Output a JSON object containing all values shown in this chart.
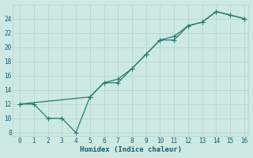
{
  "xlabel": "Humidex (Indice chaleur)",
  "line1_x": [
    0,
    1,
    2,
    3,
    4,
    5,
    6,
    7,
    8,
    9,
    10,
    11,
    12,
    13,
    14,
    15,
    16
  ],
  "line1_y": [
    12,
    12,
    10,
    10,
    8,
    13,
    15,
    15,
    17,
    19,
    21,
    21,
    23,
    23.5,
    25,
    24.5,
    24
  ],
  "line2_x": [
    0,
    5,
    6,
    7,
    8,
    9,
    10,
    11,
    12,
    13,
    14,
    15,
    16
  ],
  "line2_y": [
    12,
    13,
    15,
    15.5,
    17,
    19,
    21,
    21.5,
    23,
    23.5,
    25,
    24.5,
    24
  ],
  "line_color": "#2a7a6e",
  "bg_color": "#cde9e4",
  "grid_major_color": "#b8d4cf",
  "grid_minor_color": "#d8eceb",
  "text_color": "#1a5a6a",
  "xlim": [
    0,
    16
  ],
  "ylim": [
    7.5,
    26
  ],
  "yticks": [
    8,
    10,
    12,
    14,
    16,
    18,
    20,
    22,
    24
  ],
  "xticks": [
    0,
    1,
    2,
    3,
    4,
    5,
    6,
    7,
    8,
    9,
    10,
    11,
    12,
    13,
    14,
    15,
    16
  ]
}
